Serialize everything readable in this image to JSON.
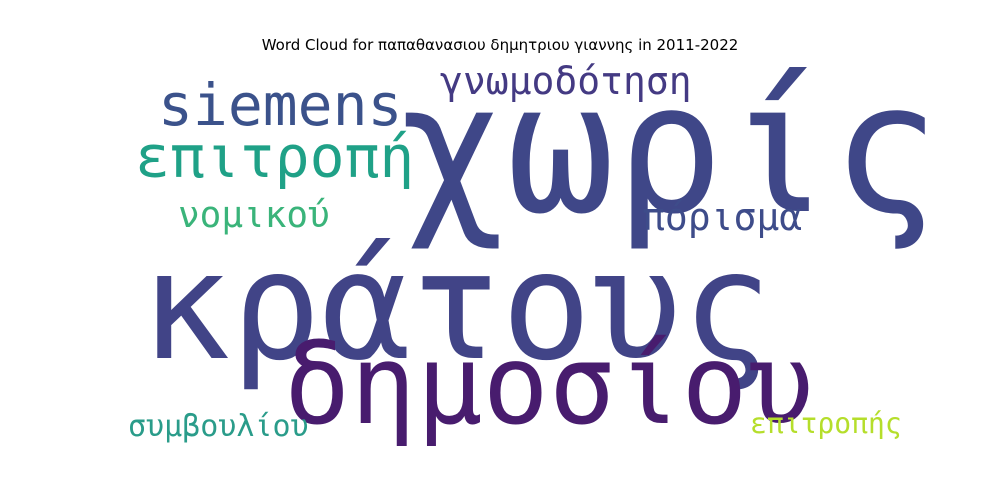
{
  "chart_data": {
    "type": "wordcloud",
    "title": "Word Cloud for παπαθανασιου δημητριου γιαννης in 2011-2022",
    "words": [
      {
        "text": "κράτους",
        "weight": 1.0,
        "color": "#414487"
      },
      {
        "text": "χωρίς",
        "weight": 0.95,
        "color": "#3f4788"
      },
      {
        "text": "δημοσίου",
        "weight": 0.75,
        "color": "#481c6e"
      },
      {
        "text": "επιτροπή",
        "weight": 0.45,
        "color": "#1fa187"
      },
      {
        "text": "siemens",
        "weight": 0.45,
        "color": "#3b528b"
      },
      {
        "text": "γνωμοδότηση",
        "weight": 0.3,
        "color": "#443a83"
      },
      {
        "text": "πόρισμα",
        "weight": 0.3,
        "color": "#3e4c8a"
      },
      {
        "text": "νομικού",
        "weight": 0.28,
        "color": "#3ab47a"
      },
      {
        "text": "συμβουλίου",
        "weight": 0.22,
        "color": "#2a9c8a"
      },
      {
        "text": "επιτροπής",
        "weight": 0.2,
        "color": "#b5de2b"
      }
    ]
  }
}
